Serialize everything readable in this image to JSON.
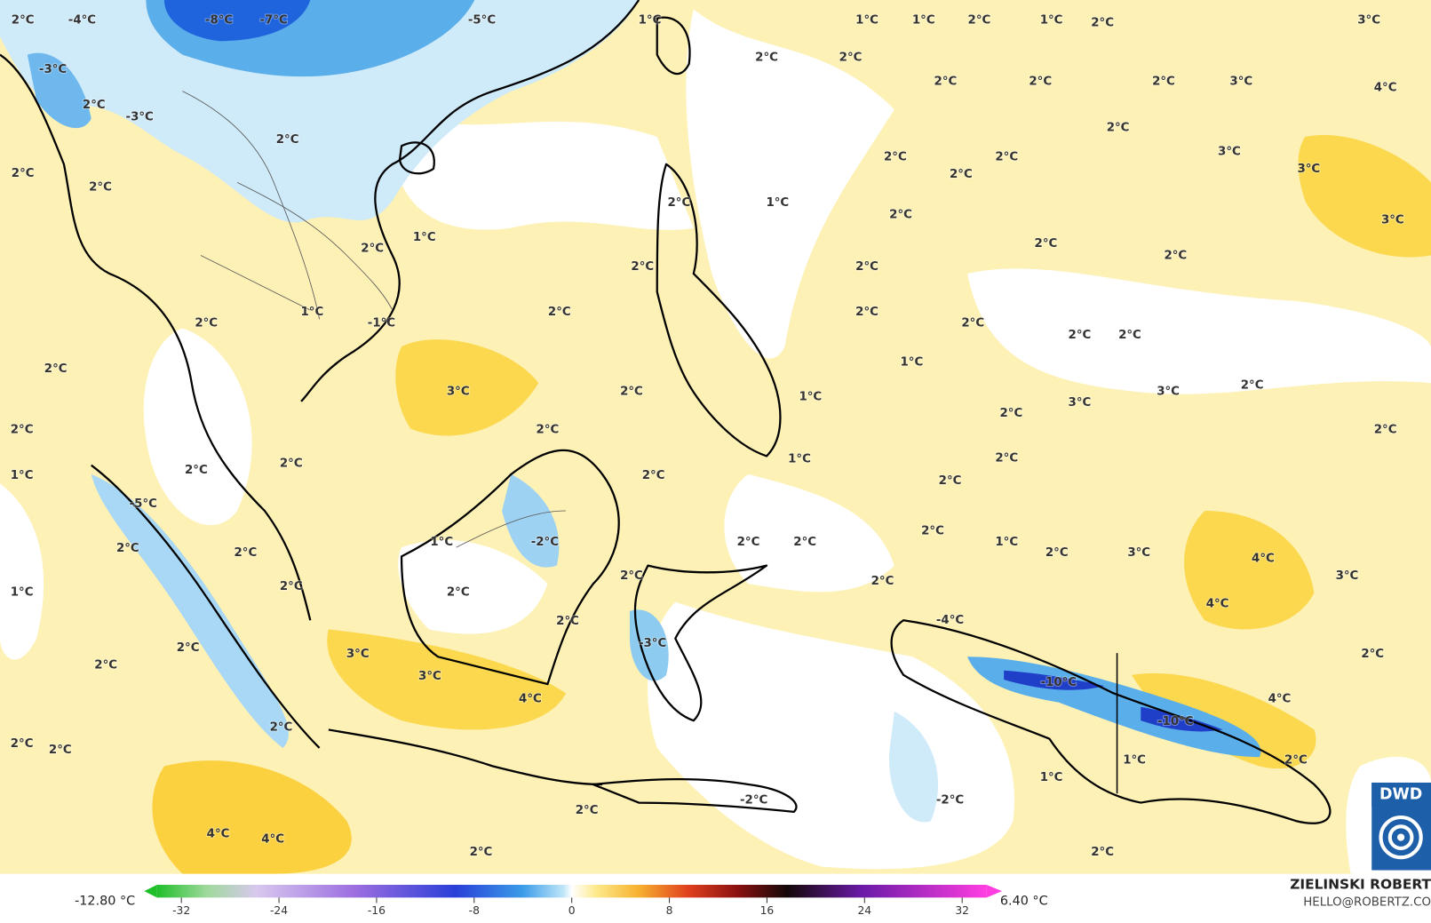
{
  "map_labels": [
    "-8°C",
    "-7°C",
    "-5°C",
    "-4°C",
    "2°C",
    "-3°C",
    "2°C",
    "-3°C",
    "2°C",
    "2°C",
    "2°C",
    "1°C",
    "1°C",
    "1°C",
    "2°C",
    "1°C",
    "2°C",
    "3°C",
    "2°C",
    "2°C",
    "2°C",
    "2°C",
    "2°C",
    "3°C",
    "4°C",
    "2°C",
    "3°C",
    "3°C",
    "2°C",
    "2°C",
    "2°C",
    "1°C",
    "2°C",
    "3°C",
    "2°C",
    "2°C",
    "2°C",
    "1°C",
    "2°C",
    "2°C",
    "2°C",
    "1°C",
    "-1°C",
    "2°C",
    "2°C",
    "2°C",
    "2°C",
    "2°C",
    "2°C",
    "2°C",
    "1°C",
    "3°C",
    "2°C",
    "1°C",
    "3°C",
    "2°C",
    "3°C",
    "2°C",
    "2°C",
    "2°C",
    "2°C",
    "1°C",
    "2°C",
    "2°C",
    "2°C",
    "2°C",
    "2°C",
    "1°C",
    "-5°C",
    "2°C",
    "2°C",
    "1°C",
    "-2°C",
    "2°C",
    "2°C",
    "2°C",
    "1°C",
    "2°C",
    "3°C",
    "4°C",
    "3°C",
    "1°C",
    "2°C",
    "2°C",
    "2°C",
    "2°C",
    "2°C",
    "-4°C",
    "4°C",
    "2°C",
    "3°C",
    "-3°C",
    "2°C",
    "2°C",
    "3°C",
    "-10°C",
    "4°C",
    "4°C",
    "2°C",
    "-10°C",
    "2°C",
    "2°C",
    "1°C",
    "2°C",
    "1°C",
    "-2°C",
    "2°C",
    "-2°C",
    "4°C",
    "4°C",
    "2°C",
    "2°C"
  ],
  "colorbar": {
    "min_label": "-12.80 °C",
    "max_label": "6.40 °C",
    "lim": [
      -34,
      34
    ],
    "ticks": [
      -32,
      -24,
      -16,
      -8,
      0,
      8,
      16,
      24,
      32
    ]
  },
  "credit": {
    "name": "ZIELINSKI ROBERT",
    "contact": "HELLO@ROBERTZ.CO"
  },
  "logo": "DWD"
}
